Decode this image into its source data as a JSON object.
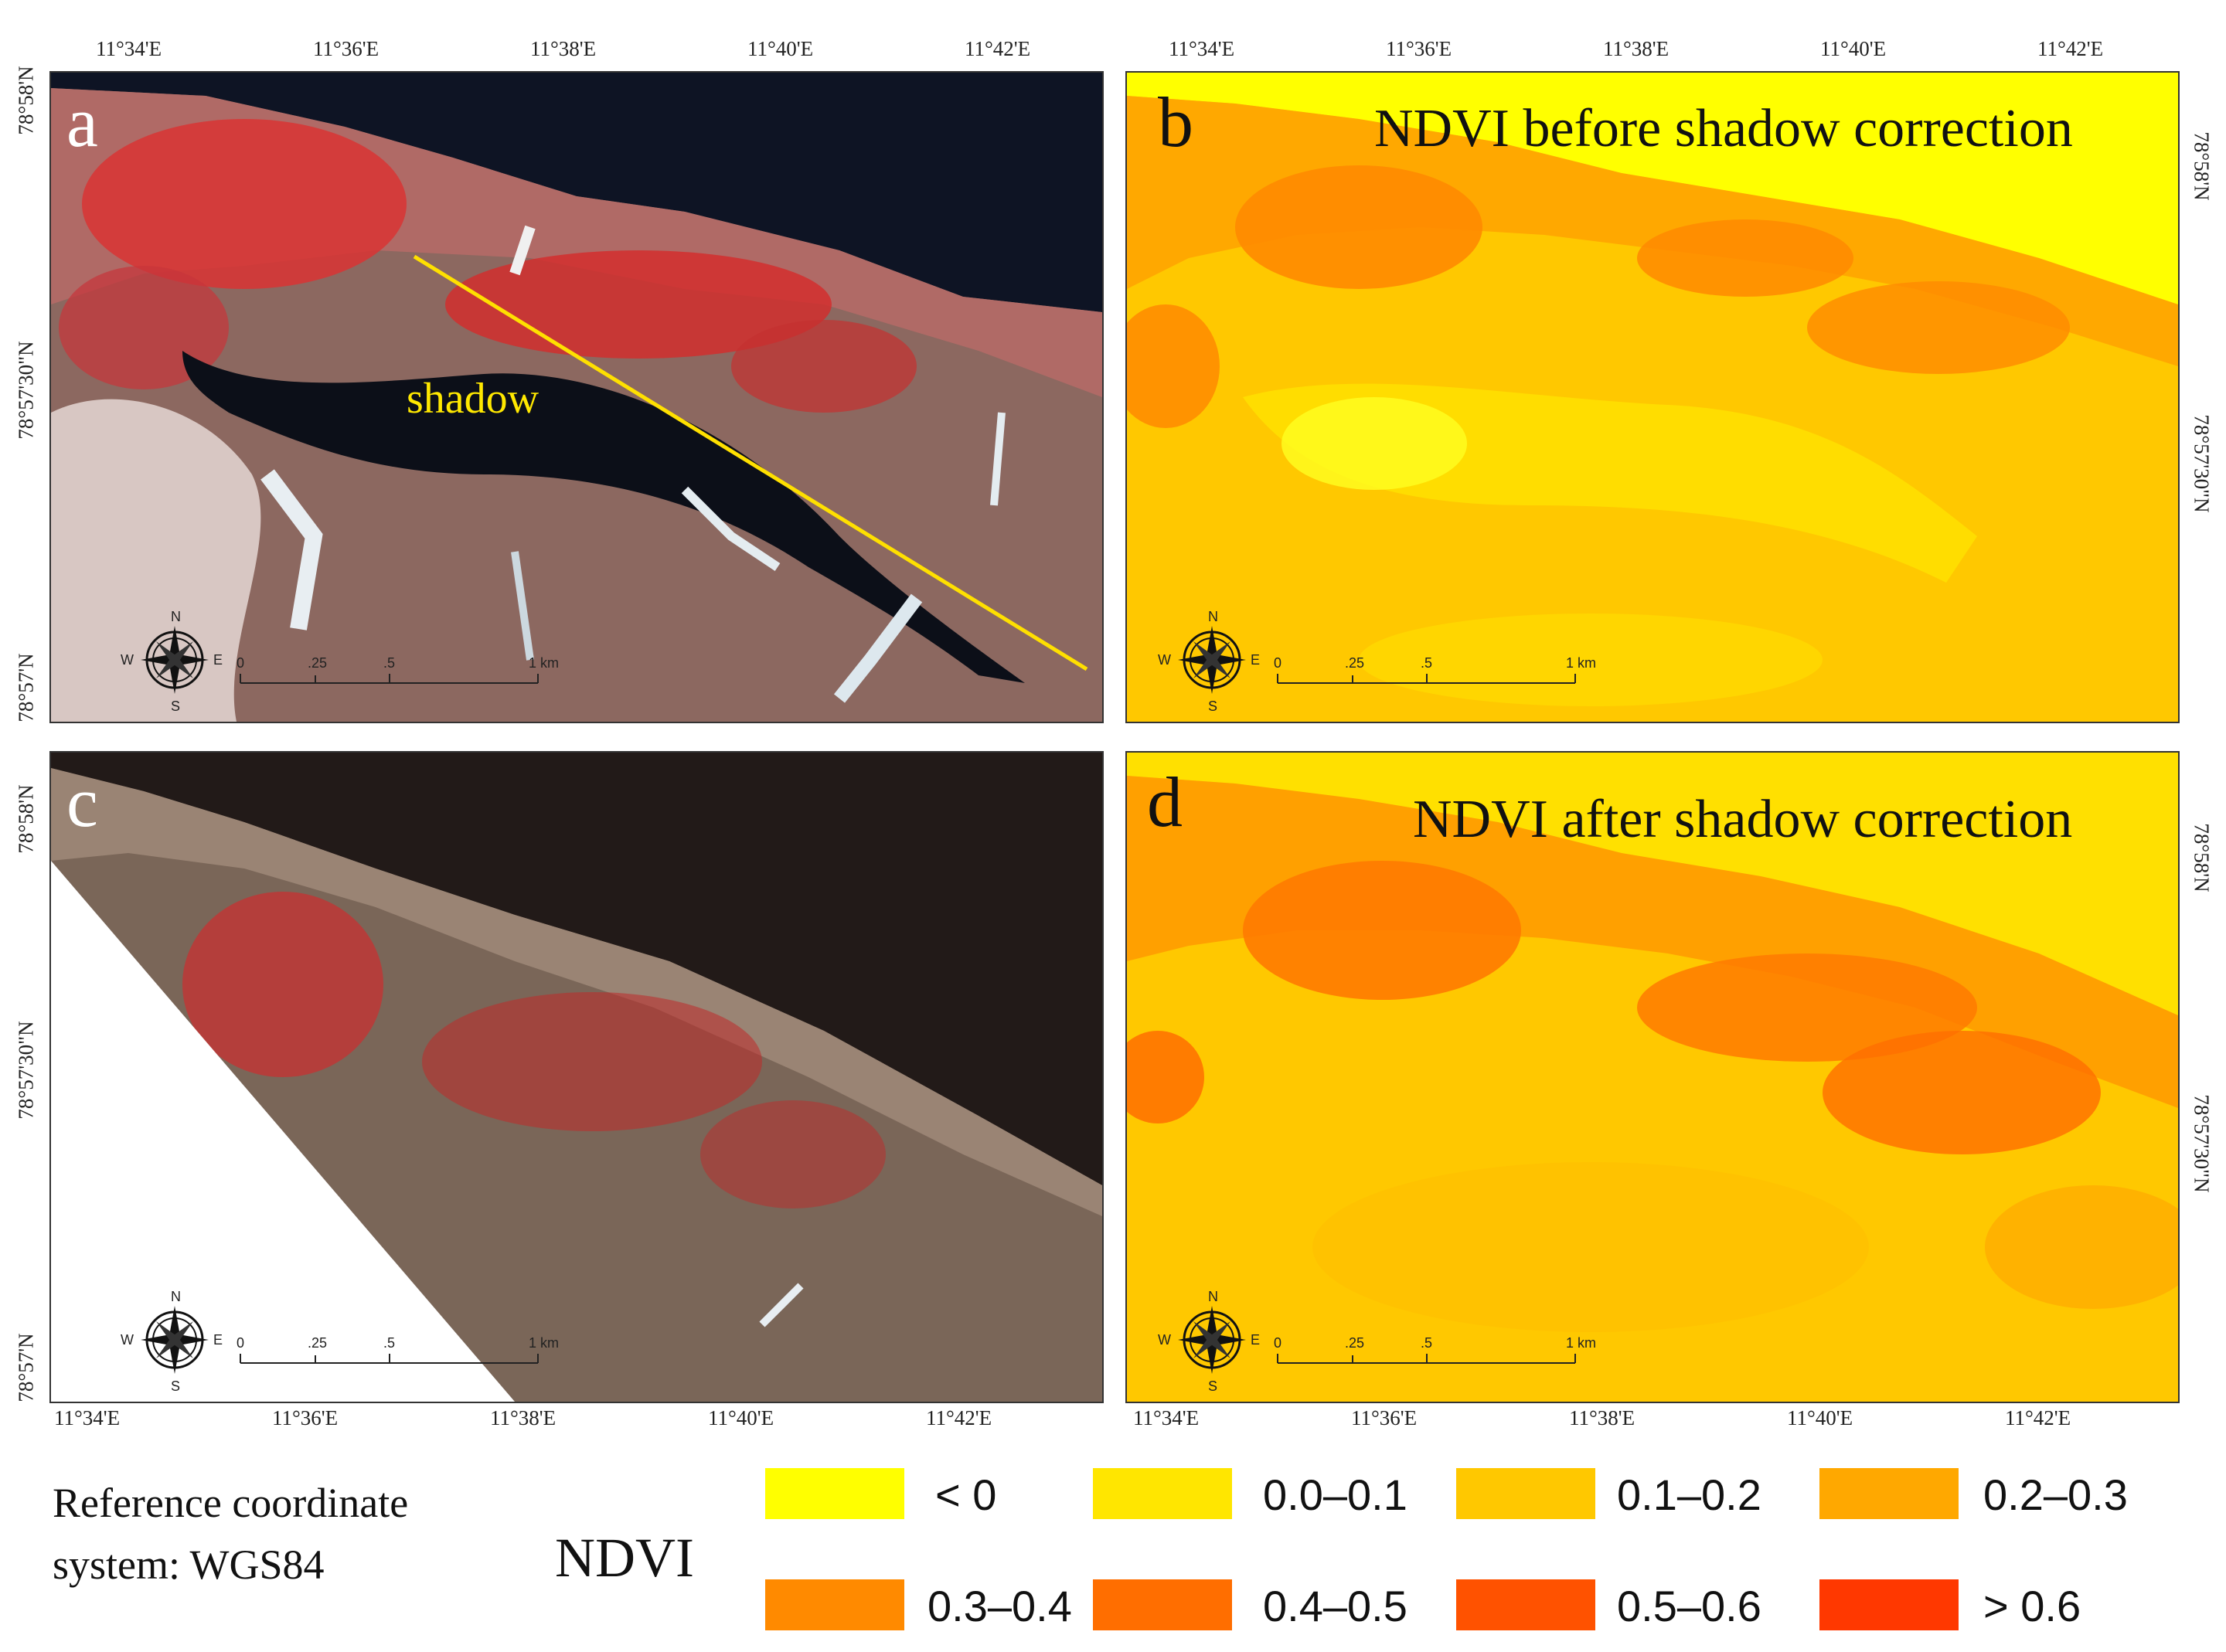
{
  "figure": {
    "lon_ticks": [
      "11°34'E",
      "11°36'E",
      "11°38'E",
      "11°40'E",
      "11°42'E"
    ],
    "lat_ticks_left_top": [
      "78°58'N",
      "78°57'30\"N",
      "78°57'N"
    ],
    "lat_ticks_left_bottom": [
      "78°58'N",
      "78°57'30\"N",
      "78°57'N"
    ],
    "lat_ticks_right_top": [
      "78°58'N",
      "78°57'30\"N"
    ],
    "lat_ticks_right_bottom": [
      "78°58'N",
      "78°57'30\"N"
    ],
    "reference_system": "Reference coordinate system: WGS84",
    "reference_line1": "Reference coordinate",
    "reference_line2": "system: WGS84"
  },
  "panels": {
    "a": {
      "label": "a",
      "annotation": "shadow"
    },
    "b": {
      "label": "b",
      "title": "NDVI before shadow correction"
    },
    "c": {
      "label": "c"
    },
    "d": {
      "label": "d",
      "title": "NDVI after shadow correction"
    }
  },
  "compass": {
    "n": "N",
    "s": "S",
    "e": "E",
    "w": "W"
  },
  "scalebar": {
    "ticks": [
      "0",
      ".25",
      ".5",
      "1 km"
    ]
  },
  "legend": {
    "title": "NDVI",
    "classes": [
      {
        "label": "< 0",
        "color": "#ffff00"
      },
      {
        "label": "0.0–0.1",
        "color": "#ffe600"
      },
      {
        "label": "0.1–0.2",
        "color": "#ffc800"
      },
      {
        "label": "0.2–0.3",
        "color": "#ffa800"
      },
      {
        "label": "0.3–0.4",
        "color": "#ff8a00"
      },
      {
        "label": "0.4–0.5",
        "color": "#ff6e00"
      },
      {
        "label": "0.5–0.6",
        "color": "#ff5200"
      },
      {
        "label": "> 0.6",
        "color": "#ff3800"
      }
    ]
  }
}
